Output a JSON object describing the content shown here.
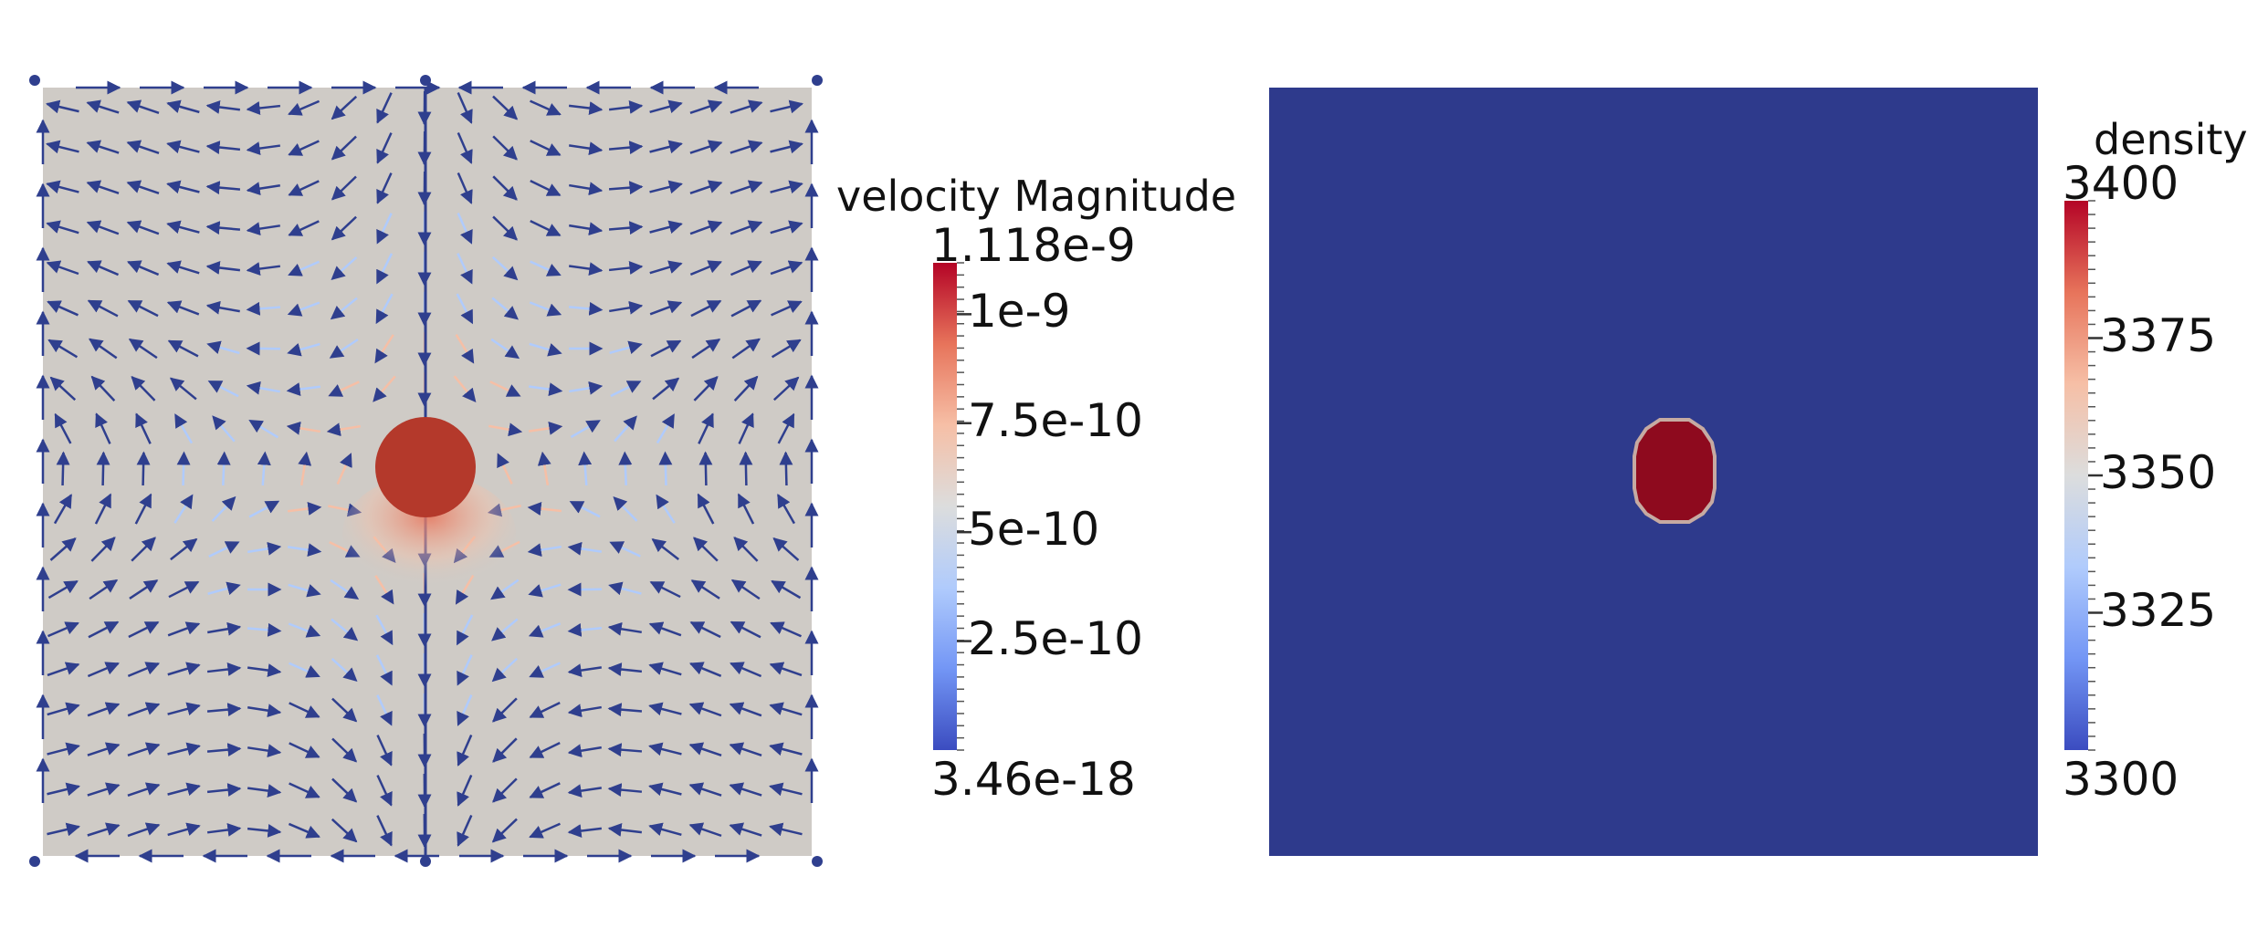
{
  "velocity_panel": {
    "bar_title": "velocity Magnitude",
    "range_max": "1.118e-9",
    "range_min": "3.46e-18",
    "ticks": [
      "1e-9",
      "7.5e-10",
      "5e-10",
      "2.5e-10"
    ],
    "tick_values": [
      1e-09,
      7.5e-10,
      5e-10,
      2.5e-10
    ],
    "max_value": 1.118e-09,
    "min_value": 3.46e-18,
    "background_color": "#cfcbc6",
    "arrow_color": "#2f3f8e",
    "sphere_color": "#b4392b",
    "colormap": [
      "#3b4cc0",
      "#7396f5",
      "#b0cbfc",
      "#dcdddd",
      "#f6bfa6",
      "#e7745b",
      "#b40426"
    ]
  },
  "density_panel": {
    "bar_title": "density",
    "range_max": "3400",
    "range_min": "3300",
    "ticks": [
      "3375",
      "3350",
      "3325"
    ],
    "tick_values": [
      3375,
      3350,
      3325
    ],
    "max_value": 3400,
    "min_value": 3300,
    "background_color": "#2e3a8c",
    "sphere_color": "#8e0a1e",
    "sphere_edge_color": "#c6aaa2",
    "colormap": [
      "#3b4cc0",
      "#7396f5",
      "#b0cbfc",
      "#dcdddd",
      "#f6bfa6",
      "#e7745b",
      "#b40426"
    ]
  }
}
